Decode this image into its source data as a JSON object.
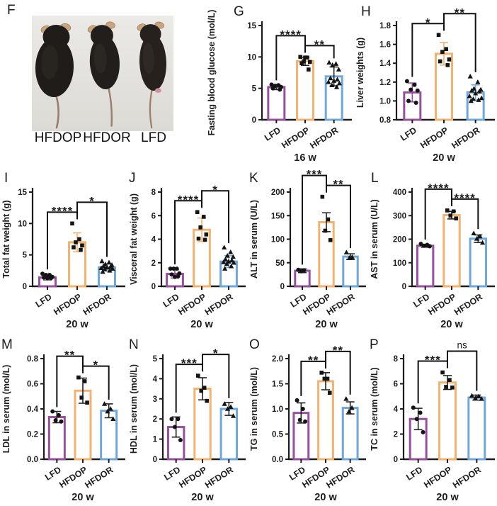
{
  "figure": {
    "photo": {
      "letter": "F",
      "mice_labels": [
        "HFDOP",
        "HFDOR",
        "LFD"
      ]
    },
    "style": {
      "bar_colors": [
        "#94509C",
        "#F3B26F",
        "#6FA7DB"
      ],
      "marker_color": "#141414",
      "axis_color": "#1c1c1c",
      "bracket_color": "#111111",
      "markers": [
        "circle",
        "square",
        "triangle"
      ]
    }
  },
  "chart_data": [
    {
      "panel": "G",
      "type": "bar",
      "ylabel": "Fasting blood glucose (mol/L)",
      "xlabel": "16 w",
      "categories": [
        "LFD",
        "HFDOP",
        "HFDOR"
      ],
      "values": [
        5.2,
        9.3,
        6.9
      ],
      "errors": [
        0.4,
        0.65,
        1.5
      ],
      "points": [
        [
          5.6,
          5.5,
          5.4,
          5.2,
          5.0,
          4.8
        ],
        [
          10.0,
          9.9,
          9.3,
          9.2,
          9.0,
          8.0,
          9.9
        ],
        [
          9.1,
          8.9,
          8.7,
          8.0,
          6.6,
          6.4,
          6.2,
          6.0,
          5.8,
          5.5,
          5.2
        ]
      ],
      "ylim": [
        0,
        15
      ],
      "yticks": [
        "0",
        "5",
        "10",
        "15"
      ],
      "sig": [
        {
          "between": [
            0,
            1
          ],
          "label": "****"
        },
        {
          "between": [
            1,
            2
          ],
          "label": "**"
        }
      ],
      "bracket_raised": "left",
      "err_style": "black"
    },
    {
      "panel": "H",
      "type": "bar",
      "ylabel": "Liver weights (g)",
      "xlabel": "20 w",
      "categories": [
        "LFD",
        "HFDOP",
        "HFDOR"
      ],
      "values": [
        1.09,
        1.5,
        1.09
      ],
      "errors": [
        0.1,
        0.12,
        0.08
      ],
      "points": [
        [
          1.21,
          1.17,
          1.12,
          1.11,
          1.0,
          0.98
        ],
        [
          1.7,
          1.55,
          1.52,
          1.44,
          1.42,
          1.38
        ],
        [
          1.26,
          1.2,
          1.13,
          1.12,
          1.11,
          1.1,
          1.08,
          1.05,
          1.03,
          1.02,
          1.01,
          1.0
        ]
      ],
      "ylim": [
        0.8,
        1.8
      ],
      "yticks": [
        "0.8",
        "1.0",
        "1.2",
        "1.4",
        "1.6",
        "1.8"
      ],
      "sig": [
        {
          "between": [
            0,
            1
          ],
          "label": "*"
        },
        {
          "between": [
            1,
            2
          ],
          "label": "**"
        }
      ],
      "bracket_raised": "right",
      "err_style": "bar"
    },
    {
      "panel": "I",
      "type": "bar",
      "ylabel": "Total fat weight (g)",
      "xlabel": "20 w",
      "categories": [
        "LFD",
        "HFDOP",
        "HFDOR"
      ],
      "values": [
        1.4,
        7.0,
        3.0
      ],
      "errors": [
        0.4,
        1.5,
        0.55
      ],
      "points": [
        [
          2.0,
          1.8,
          1.8,
          1.5,
          1.4,
          1.3,
          1.3
        ],
        [
          10.0,
          7.5,
          7.0,
          6.5,
          6.2,
          5.8
        ],
        [
          4.0,
          3.8,
          3.5,
          3.4,
          3.2,
          3.1,
          3.0,
          2.9,
          2.8,
          2.7,
          2.5,
          2.3
        ]
      ],
      "ylim": [
        0,
        15
      ],
      "yticks": [
        "0",
        "5",
        "10",
        "15"
      ],
      "sig": [
        {
          "between": [
            0,
            1
          ],
          "label": "****"
        },
        {
          "between": [
            1,
            2
          ],
          "label": "*"
        }
      ],
      "bracket_raised": "right",
      "err_style": "bar"
    },
    {
      "panel": "J",
      "type": "bar",
      "ylabel": "Visceral fat weight (g)",
      "xlabel": "20 w",
      "categories": [
        "LFD",
        "HFDOP",
        "HFDOR"
      ],
      "values": [
        1.05,
        4.8,
        2.1
      ],
      "errors": [
        0.35,
        1.0,
        0.5
      ],
      "points": [
        [
          1.5,
          1.5,
          1.5,
          1.1,
          1.0,
          0.85,
          0.8
        ],
        [
          6.3,
          5.9,
          5.0,
          4.4,
          4.05,
          3.95
        ],
        [
          3.3,
          2.9,
          2.6,
          2.5,
          2.3,
          2.2,
          2.1,
          2.05,
          2.0,
          1.9,
          1.7,
          1.5
        ]
      ],
      "ylim": [
        0,
        8
      ],
      "yticks": [
        "0",
        "2",
        "4",
        "6",
        "8"
      ],
      "sig": [
        {
          "between": [
            0,
            1
          ],
          "label": "****"
        },
        {
          "between": [
            1,
            2
          ],
          "label": "*"
        }
      ],
      "bracket_raised": "right",
      "err_style": "bar"
    },
    {
      "panel": "K",
      "type": "bar",
      "ylabel": "ALT in serum (U/L)",
      "xlabel": "20 w",
      "categories": [
        "LFD",
        "HFDOP",
        "HFDOR"
      ],
      "values": [
        33,
        136,
        63
      ],
      "errors": [
        4,
        20,
        6
      ],
      "points": [
        [
          35,
          34,
          32
        ],
        [
          190,
          142,
          118,
          98
        ],
        [
          72,
          62,
          60
        ]
      ],
      "ylim": [
        0,
        200
      ],
      "yticks": [
        "0",
        "50",
        "100",
        "150",
        "200"
      ],
      "sig": [
        {
          "between": [
            0,
            1
          ],
          "label": "***"
        },
        {
          "between": [
            1,
            2
          ],
          "label": "**"
        }
      ],
      "bracket_raised": "left",
      "err_style": "black"
    },
    {
      "panel": "L",
      "type": "bar",
      "ylabel": "AST in serum (U/L)",
      "xlabel": "20 w",
      "categories": [
        "LFD",
        "HFDOP",
        "HFDOR"
      ],
      "values": [
        172,
        302,
        202
      ],
      "errors": [
        6,
        16,
        16
      ],
      "points": [
        [
          180,
          176,
          172,
          170
        ],
        [
          322,
          318,
          300,
          288
        ],
        [
          225,
          212,
          202,
          185
        ]
      ],
      "ylim": [
        0,
        400
      ],
      "yticks": [
        "0",
        "100",
        "200",
        "300",
        "400"
      ],
      "sig": [
        {
          "between": [
            0,
            1
          ],
          "label": "****"
        },
        {
          "between": [
            1,
            2
          ],
          "label": "****"
        }
      ],
      "bracket_raised": "left",
      "err_style": "black"
    },
    {
      "panel": "M",
      "type": "bar",
      "ylabel": "LDL in serum (mol/L)",
      "xlabel": "20 w",
      "categories": [
        "LFD",
        "HFDOP",
        "HFDOR"
      ],
      "values": [
        0.335,
        0.545,
        0.385
      ],
      "errors": [
        0.045,
        0.1,
        0.055
      ],
      "points": [
        [
          0.38,
          0.35,
          0.31,
          0.3
        ],
        [
          0.65,
          0.62,
          0.49,
          0.45
        ],
        [
          0.44,
          0.4,
          0.38,
          0.32
        ]
      ],
      "ylim": [
        0,
        0.8
      ],
      "yticks": [
        "0.0",
        "0.2",
        "0.4",
        "0.6",
        "0.8"
      ],
      "sig": [
        {
          "between": [
            0,
            1
          ],
          "label": "**"
        },
        {
          "between": [
            1,
            2
          ],
          "label": "*"
        }
      ],
      "bracket_raised": "left",
      "err_style": "black"
    },
    {
      "panel": "N",
      "type": "bar",
      "ylabel": "HDL in serum (mol/L)",
      "xlabel": "20 w",
      "categories": [
        "LFD",
        "HFDOP",
        "HFDOR"
      ],
      "values": [
        1.6,
        3.5,
        2.5
      ],
      "errors": [
        0.5,
        0.55,
        0.32
      ],
      "points": [
        [
          2.0,
          2.0,
          1.6,
          0.95
        ],
        [
          4.15,
          3.55,
          3.4,
          2.9
        ],
        [
          2.75,
          2.6,
          2.5,
          2.15
        ]
      ],
      "ylim": [
        0,
        5
      ],
      "yticks": [
        "0",
        "1",
        "2",
        "3",
        "4",
        "5"
      ],
      "sig": [
        {
          "between": [
            0,
            1
          ],
          "label": "***"
        },
        {
          "between": [
            1,
            2
          ],
          "label": "*"
        }
      ],
      "bracket_raised": "right",
      "err_style": "black"
    },
    {
      "panel": "O",
      "type": "bar",
      "ylabel": "TG in serum (mol/L)",
      "xlabel": "20 w",
      "categories": [
        "LFD",
        "HFDOP",
        "HFDOR"
      ],
      "values": [
        0.92,
        1.55,
        1.02
      ],
      "errors": [
        0.2,
        0.17,
        0.12
      ],
      "points": [
        [
          1.17,
          1.0,
          0.78,
          0.75
        ],
        [
          1.72,
          1.6,
          1.6,
          1.32
        ],
        [
          1.2,
          1.02,
          0.95
        ]
      ],
      "ylim": [
        0,
        2
      ],
      "yticks": [
        "0.0",
        "0.5",
        "1.0",
        "1.5",
        "2.0"
      ],
      "sig": [
        {
          "between": [
            0,
            1
          ],
          "label": "**"
        },
        {
          "between": [
            1,
            2
          ],
          "label": "**"
        }
      ],
      "bracket_raised": "right",
      "err_style": "black"
    },
    {
      "panel": "P",
      "type": "bar",
      "ylabel": "TC in serum (mol/L)",
      "xlabel": "20 w",
      "categories": [
        "LFD",
        "HFDOP",
        "HFDOR"
      ],
      "values": [
        3.2,
        6.1,
        4.9
      ],
      "errors": [
        0.85,
        0.55,
        0.2
      ],
      "points": [
        [
          4.1,
          3.7,
          3.2,
          2.15
        ],
        [
          6.9,
          6.3,
          5.75,
          5.7
        ],
        [
          5.05,
          5.0,
          4.85,
          4.8
        ]
      ],
      "ylim": [
        0,
        8
      ],
      "yticks": [
        "0",
        "2",
        "4",
        "6",
        "8"
      ],
      "sig": [
        {
          "between": [
            0,
            1
          ],
          "label": "***"
        },
        {
          "between": [
            1,
            2
          ],
          "label": "ns"
        }
      ],
      "bracket_raised": "right",
      "err_style": "black"
    }
  ]
}
